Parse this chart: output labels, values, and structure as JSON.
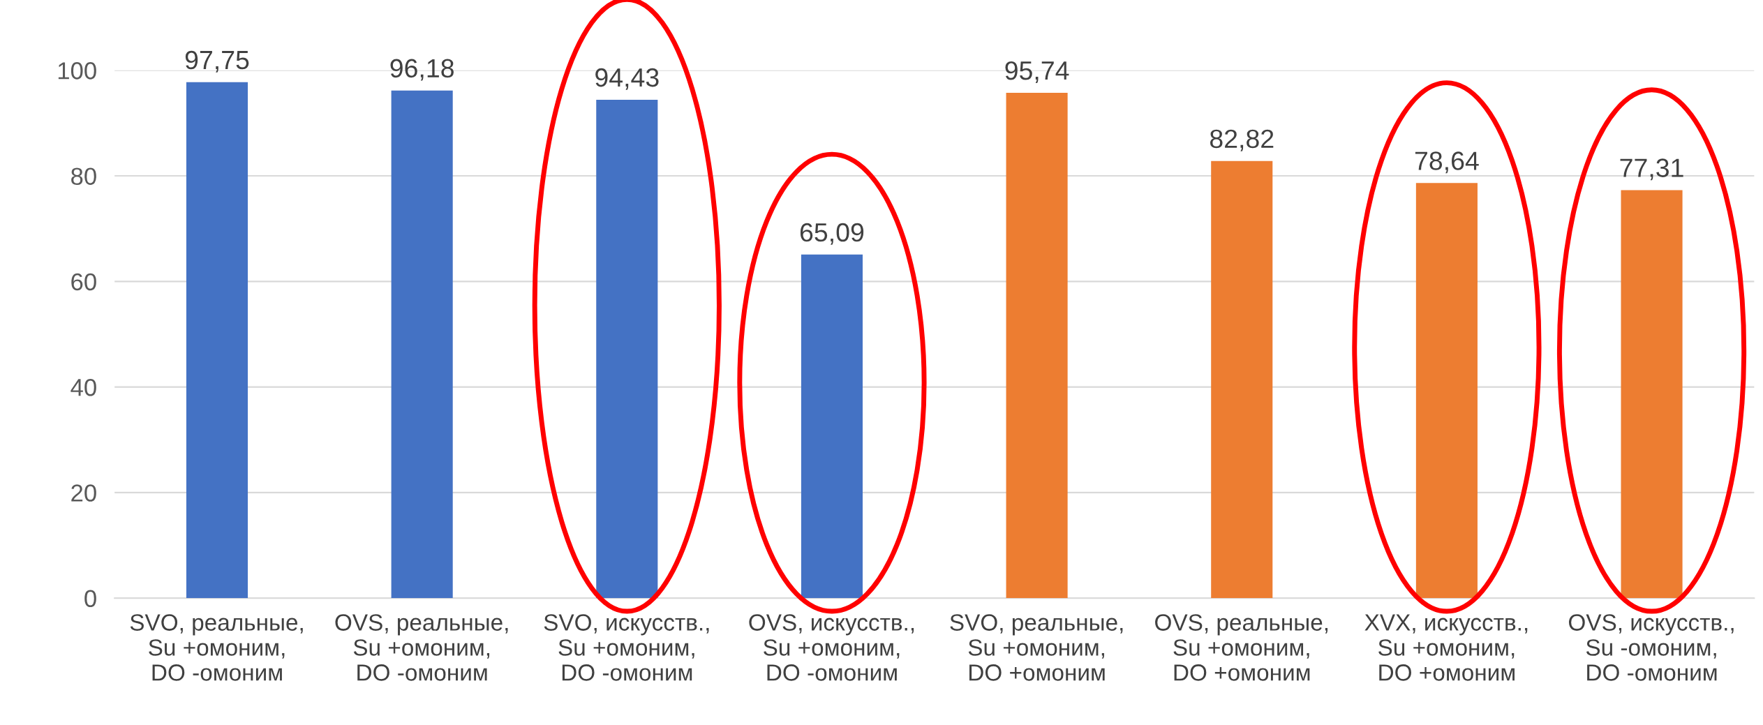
{
  "chart_data": {
    "type": "bar",
    "categories": [
      "SVO, реальные,\nSu +омоним,\nDO -омоним",
      "OVS, реальные,\nSu +омоним,\nDO -омоним",
      "SVO, искусств.,\nSu +омоним,\nDO -омоним",
      "OVS, искусств.,\nSu +омоним,\nDO -омоним",
      "SVO, реальные,\nSu +омоним,\nDO +омоним",
      "OVS, реальные,\nSu +омоним,\nDO +омоним",
      "XVX, искусств.,\nSu +омоним,\nDO +омоним",
      "OVS, искусств.,\nSu -омоним,\nDO -омоним"
    ],
    "values": [
      97.75,
      96.18,
      94.43,
      65.09,
      95.74,
      82.82,
      78.64,
      77.31
    ],
    "value_labels": [
      "97,75",
      "96,18",
      "94,43",
      "65,09",
      "95,74",
      "82,82",
      "78,64",
      "77,31"
    ],
    "colors": [
      "#4472c4",
      "#4472c4",
      "#4472c4",
      "#4472c4",
      "#ed7d31",
      "#ed7d31",
      "#ed7d31",
      "#ed7d31"
    ],
    "ylim": [
      0,
      100
    ],
    "yticks": [
      0,
      20,
      40,
      60,
      80,
      100
    ],
    "grid": "y",
    "legend": false
  }
}
